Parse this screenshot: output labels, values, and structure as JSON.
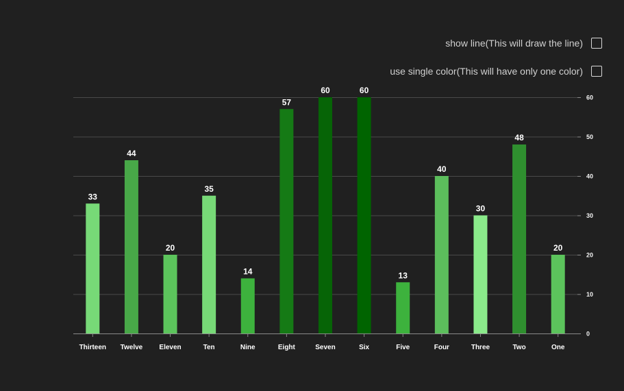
{
  "options": {
    "show_line_label": "show line(This will draw the line)",
    "single_color_label": "use single color(This will have only one color)"
  },
  "chart_data": {
    "type": "bar",
    "categories": [
      "Thirteen",
      "Twelve",
      "Eleven",
      "Ten",
      "Nine",
      "Eight",
      "Seven",
      "Six",
      "Five",
      "Four",
      "Three",
      "Two",
      "One"
    ],
    "values": [
      33,
      44,
      20,
      35,
      14,
      57,
      60,
      60,
      13,
      40,
      30,
      48,
      20
    ],
    "colors": [
      "#77d977",
      "#48a848",
      "#5cc45c",
      "#77d977",
      "#3db23d",
      "#157a15",
      "#066406",
      "#006400",
      "#3db23d",
      "#5cbe5c",
      "#8aea8a",
      "#2f8f2f",
      "#5cc45c"
    ],
    "ylim": [
      0,
      60
    ],
    "yticks": [
      0,
      10,
      20,
      30,
      40,
      50,
      60
    ],
    "y_axis_position": "right",
    "grid": true,
    "title": "",
    "xlabel": "",
    "ylabel": ""
  }
}
